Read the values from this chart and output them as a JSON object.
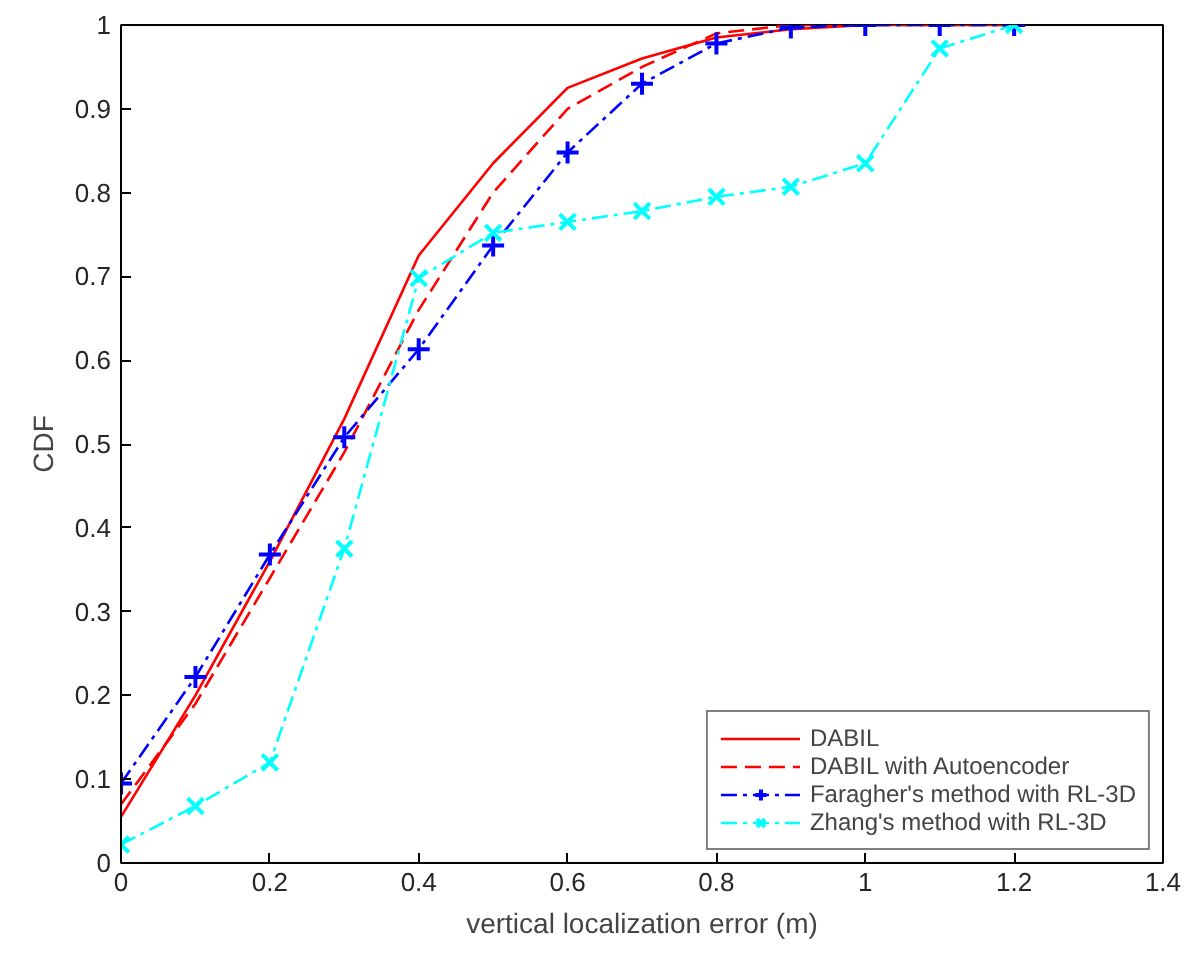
{
  "chart_data": {
    "type": "line",
    "xlabel": "vertical localization error (m)",
    "ylabel": "CDF",
    "xlim": [
      0,
      1.4
    ],
    "xticks": [
      0,
      0.2,
      0.4,
      0.6,
      0.8,
      1,
      1.2,
      1.4
    ],
    "ylim": [
      0,
      1
    ],
    "yticks": [
      0,
      0.1,
      0.2,
      0.3,
      0.4,
      0.5,
      0.6,
      0.7,
      0.8,
      0.9,
      1
    ],
    "grid": false,
    "legend": "bottom right",
    "series": [
      {
        "name": "DABIL",
        "color": "#ff0000",
        "line_style": "solid",
        "marker": "none",
        "x": [
          0,
          0.1,
          0.2,
          0.3,
          0.4,
          0.5,
          0.6,
          0.7,
          0.8,
          0.9,
          1.0,
          1.2
        ],
        "values": [
          0.055,
          0.2,
          0.36,
          0.53,
          0.725,
          0.835,
          0.925,
          0.96,
          0.985,
          0.995,
          1,
          1
        ]
      },
      {
        "name": "DABIL with Autoencoder",
        "color": "#ff0000",
        "line_style": "dashed",
        "marker": "none",
        "x": [
          0,
          0.1,
          0.2,
          0.3,
          0.4,
          0.5,
          0.6,
          0.7,
          0.8,
          0.9,
          1.0,
          1.2
        ],
        "values": [
          0.07,
          0.19,
          0.34,
          0.49,
          0.66,
          0.8,
          0.9,
          0.95,
          0.99,
          1,
          1,
          1
        ]
      },
      {
        "name": "Faragher's method with RL-3D",
        "color": "#0000ff",
        "line_style": "dashdot",
        "marker": "cross",
        "x": [
          0,
          0.1,
          0.2,
          0.3,
          0.4,
          0.5,
          0.6,
          0.7,
          0.8,
          0.9,
          1.0,
          1.1,
          1.2
        ],
        "values": [
          0.095,
          0.222,
          0.368,
          0.508,
          0.613,
          0.737,
          0.848,
          0.93,
          0.978,
          0.997,
          1,
          1,
          1
        ]
      },
      {
        "name": "Zhang's method with RL-3D",
        "color": "#00ffff",
        "line_style": "dashdot",
        "marker": "x",
        "x": [
          0,
          0.1,
          0.2,
          0.3,
          0.4,
          0.5,
          0.6,
          0.7,
          0.8,
          0.9,
          1.0,
          1.1,
          1.2
        ],
        "values": [
          0.022,
          0.068,
          0.12,
          0.375,
          0.698,
          0.752,
          0.765,
          0.778,
          0.795,
          0.807,
          0.835,
          0.972,
          1
        ]
      }
    ]
  }
}
